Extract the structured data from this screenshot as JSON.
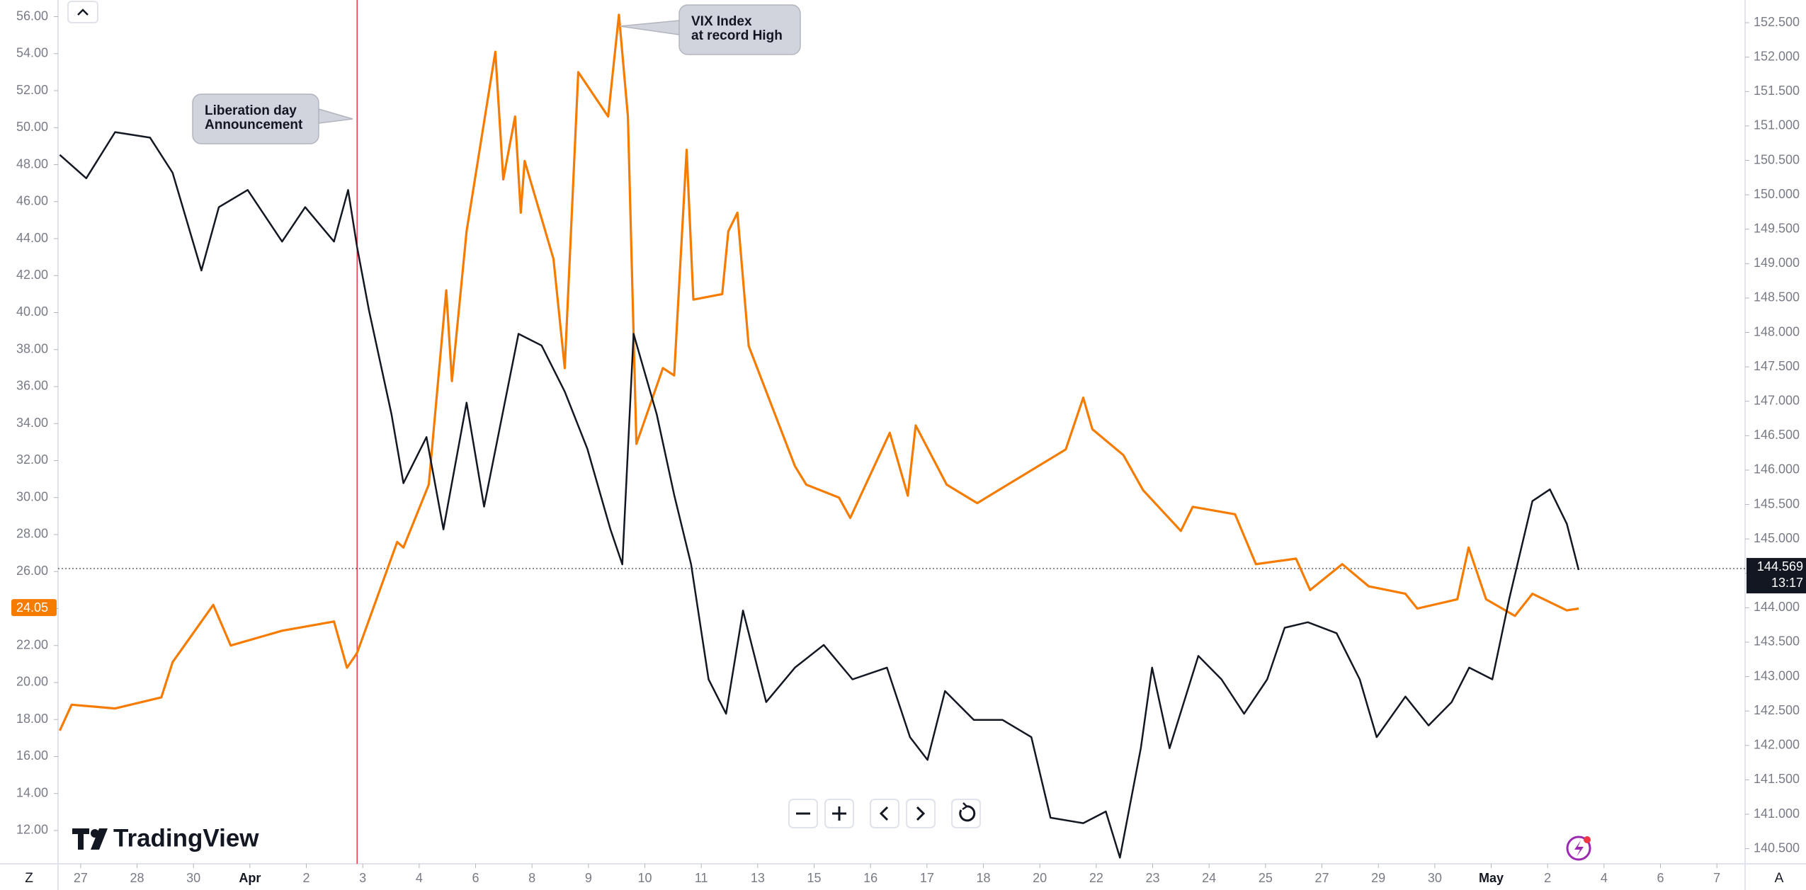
{
  "chart_data": {
    "type": "line",
    "x_label_bold": [
      "Apr",
      "May"
    ],
    "xlim": [
      -0.4,
      29.5
    ],
    "xticks": [
      {
        "value": 0,
        "label": "27"
      },
      {
        "value": 1,
        "label": "28"
      },
      {
        "value": 2,
        "label": "30"
      },
      {
        "value": 3,
        "label": "Apr"
      },
      {
        "value": 4,
        "label": "2"
      },
      {
        "value": 5,
        "label": "3"
      },
      {
        "value": 6,
        "label": "4"
      },
      {
        "value": 7,
        "label": "6"
      },
      {
        "value": 8,
        "label": "8"
      },
      {
        "value": 9,
        "label": "9"
      },
      {
        "value": 10,
        "label": "10"
      },
      {
        "value": 11,
        "label": "11"
      },
      {
        "value": 12,
        "label": "13"
      },
      {
        "value": 13,
        "label": "15"
      },
      {
        "value": 14,
        "label": "16"
      },
      {
        "value": 15,
        "label": "17"
      },
      {
        "value": 16,
        "label": "18"
      },
      {
        "value": 17,
        "label": "20"
      },
      {
        "value": 18,
        "label": "22"
      },
      {
        "value": 19,
        "label": "23"
      },
      {
        "value": 20,
        "label": "24"
      },
      {
        "value": 21,
        "label": "25"
      },
      {
        "value": 22,
        "label": "27"
      },
      {
        "value": 23,
        "label": "29"
      },
      {
        "value": 24,
        "label": "30"
      },
      {
        "value": 25,
        "label": "May"
      },
      {
        "value": 26,
        "label": "2"
      },
      {
        "value": 27,
        "label": "4"
      },
      {
        "value": 28,
        "label": "6"
      },
      {
        "value": 29,
        "label": "7"
      }
    ],
    "ylim": [
      10.2,
      56.9
    ],
    "yticks": [
      {
        "value": 12,
        "label": "12.00"
      },
      {
        "value": 14,
        "label": "14.00"
      },
      {
        "value": 16,
        "label": "16.00"
      },
      {
        "value": 18,
        "label": "18.00"
      },
      {
        "value": 20,
        "label": "20.00"
      },
      {
        "value": 22,
        "label": "22.00"
      },
      {
        "value": 24,
        "label": "24.00"
      },
      {
        "value": 26,
        "label": "26.00"
      },
      {
        "value": 28,
        "label": "28.00"
      },
      {
        "value": 30,
        "label": "30.00"
      },
      {
        "value": 32,
        "label": "32.00"
      },
      {
        "value": 34,
        "label": "34.00"
      },
      {
        "value": 36,
        "label": "36.00"
      },
      {
        "value": 38,
        "label": "38.00"
      },
      {
        "value": 40,
        "label": "40.00"
      },
      {
        "value": 42,
        "label": "42.00"
      },
      {
        "value": 44,
        "label": "44.00"
      },
      {
        "value": 46,
        "label": "46.00"
      },
      {
        "value": 48,
        "label": "48.00"
      },
      {
        "value": 50,
        "label": "50.00"
      },
      {
        "value": 52,
        "label": "52.00"
      },
      {
        "value": 54,
        "label": "54.00"
      },
      {
        "value": 56,
        "label": "56.00"
      }
    ],
    "y2lim": [
      140.28,
      152.83
    ],
    "y2ticks": [
      {
        "value": 140.5,
        "label": "140.500"
      },
      {
        "value": 141,
        "label": "141.000"
      },
      {
        "value": 141.5,
        "label": "141.500"
      },
      {
        "value": 142,
        "label": "142.000"
      },
      {
        "value": 142.5,
        "label": "142.500"
      },
      {
        "value": 143,
        "label": "143.000"
      },
      {
        "value": 143.5,
        "label": "143.500"
      },
      {
        "value": 144,
        "label": "144.000"
      },
      {
        "value": 144.5,
        "label": "144.500"
      },
      {
        "value": 145,
        "label": "145.000"
      },
      {
        "value": 145.5,
        "label": "145.500"
      },
      {
        "value": 146,
        "label": "146.000"
      },
      {
        "value": 146.5,
        "label": "146.500"
      },
      {
        "value": 147,
        "label": "147.000"
      },
      {
        "value": 147.5,
        "label": "147.500"
      },
      {
        "value": 148,
        "label": "148.000"
      },
      {
        "value": 148.5,
        "label": "148.500"
      },
      {
        "value": 149,
        "label": "149.000"
      },
      {
        "value": 149.5,
        "label": "149.500"
      },
      {
        "value": 150,
        "label": "150.000"
      },
      {
        "value": 150.5,
        "label": "150.500"
      },
      {
        "value": 151,
        "label": "151.000"
      },
      {
        "value": 151.5,
        "label": "151.500"
      },
      {
        "value": 152,
        "label": "152.000"
      },
      {
        "value": 152.5,
        "label": "152.500"
      }
    ],
    "series": [
      {
        "color": "#f57c00",
        "axis": "y",
        "x": [
          -0.37,
          -0.16,
          0.61,
          1.43,
          1.63,
          2.35,
          2.66,
          3.57,
          4.49,
          4.72,
          4.9,
          5.61,
          5.72,
          6.17,
          6.48,
          6.58,
          6.84,
          7.35,
          7.49,
          7.7,
          7.8,
          7.87,
          8.38,
          8.58,
          8.82,
          9.35,
          9.54,
          9.7,
          9.85,
          10.32,
          10.52,
          10.74,
          10.86,
          11.37,
          11.48,
          11.64,
          11.84,
          12.66,
          12.86,
          13.44,
          13.64,
          14.34,
          14.66,
          14.8,
          15.35,
          15.89,
          17.46,
          17.77,
          17.93,
          18.48,
          18.83,
          19.5,
          19.71,
          20.46,
          20.83,
          21.54,
          21.79,
          22.36,
          22.83,
          23.48,
          23.69,
          24.4,
          24.6,
          24.91,
          25.42,
          25.73,
          26.34,
          26.55
        ],
        "values": [
          17.4,
          18.8,
          18.6,
          19.2,
          21.1,
          24.2,
          22.0,
          22.8,
          23.3,
          20.8,
          21.6,
          27.6,
          27.3,
          30.7,
          41.2,
          36.3,
          44.4,
          54.1,
          47.2,
          50.6,
          45.4,
          48.2,
          42.9,
          37.0,
          53.0,
          50.6,
          56.1,
          50.6,
          32.9,
          37.0,
          36.6,
          48.8,
          40.7,
          41.0,
          44.4,
          45.4,
          38.2,
          31.7,
          30.7,
          30.0,
          28.9,
          33.5,
          30.1,
          33.9,
          30.7,
          29.7,
          32.6,
          35.4,
          33.7,
          32.3,
          30.4,
          28.2,
          29.5,
          29.1,
          26.4,
          26.7,
          25.0,
          26.4,
          25.2,
          24.8,
          24.0,
          24.5,
          27.3,
          24.5,
          23.6,
          24.8,
          23.9,
          24.0
        ]
      },
      {
        "color": "#131722",
        "axis": "y2",
        "x": [
          -0.37,
          0.1,
          0.61,
          1.23,
          1.63,
          2.14,
          2.45,
          2.96,
          3.57,
          3.98,
          4.49,
          4.74,
          4.9,
          5.11,
          5.51,
          5.72,
          6.13,
          6.43,
          6.84,
          7.15,
          7.76,
          8.17,
          8.58,
          8.98,
          9.39,
          9.6,
          9.8,
          10.21,
          10.52,
          10.82,
          11.13,
          11.44,
          11.74,
          12.15,
          12.66,
          13.17,
          13.68,
          14.29,
          14.7,
          15.01,
          15.32,
          15.83,
          16.34,
          16.85,
          17.19,
          17.77,
          18.17,
          18.42,
          18.79,
          18.99,
          19.3,
          19.81,
          20.22,
          20.62,
          21.03,
          21.34,
          21.75,
          22.26,
          22.67,
          22.97,
          23.48,
          23.89,
          24.3,
          24.61,
          25.02,
          25.32,
          25.73,
          26.04,
          26.34,
          26.55
        ],
        "values": [
          150.58,
          150.24,
          150.91,
          150.83,
          150.32,
          148.9,
          149.82,
          150.07,
          149.32,
          149.82,
          149.32,
          150.07,
          149.24,
          148.32,
          146.81,
          145.81,
          146.48,
          145.14,
          146.98,
          145.47,
          147.98,
          147.81,
          147.14,
          146.31,
          145.14,
          144.63,
          147.98,
          146.81,
          145.64,
          144.63,
          142.96,
          142.46,
          143.96,
          142.63,
          143.13,
          143.46,
          142.96,
          143.13,
          142.12,
          141.79,
          142.79,
          142.37,
          142.37,
          142.12,
          140.95,
          140.87,
          141.04,
          140.37,
          141.96,
          143.13,
          141.96,
          143.3,
          142.96,
          142.46,
          142.96,
          143.71,
          143.79,
          143.63,
          142.96,
          142.12,
          142.71,
          142.29,
          142.63,
          143.13,
          142.96,
          144.13,
          145.55,
          145.72,
          145.22,
          144.55
        ]
      }
    ],
    "annotations": [
      {
        "x": 4.9,
        "lines": [
          "Liberation day",
          "Announcement"
        ]
      },
      {
        "x": 9.54,
        "lines": [
          "VIX Index",
          "at record High"
        ]
      }
    ],
    "last_price": 144.569,
    "countdown": "13:17",
    "vix_last": 24.05,
    "branding": "TradingView",
    "timezone_button": "Z",
    "auto_button": "A"
  }
}
